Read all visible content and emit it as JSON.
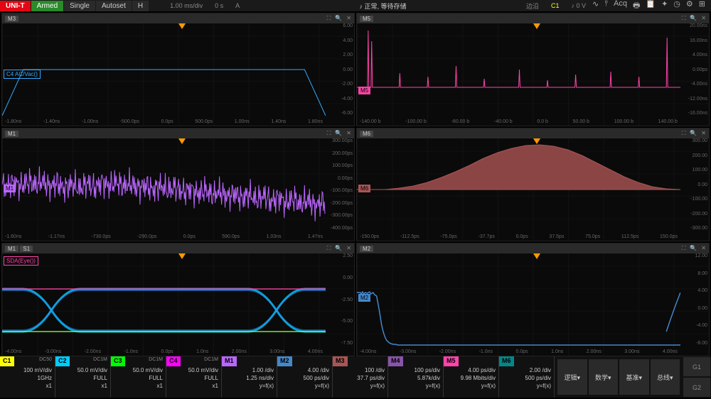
{
  "topbar": {
    "logo": "UNI-T",
    "armed": "Armed",
    "single": "Single",
    "autoset": "Autoset",
    "h": "H",
    "timebase": "1.00 ms/div",
    "delay": "0 s",
    "a": "A",
    "center": "正常, 等待存储",
    "trigger_coupling": "边沿",
    "trigger_source": "C1",
    "trigger_level": "0 V"
  },
  "panels": {
    "m3": {
      "tag": "M3",
      "label": "C4 AC/Vac()",
      "label_color": "#3af"
    },
    "m5": {
      "tag": "M5",
      "label": "M5",
      "label_color": "#f4a"
    },
    "m1": {
      "tag": "M1",
      "label": "M1",
      "label_color": "#b6f"
    },
    "m6": {
      "tag": "M6",
      "label": "M6",
      "label_color": "#a55"
    },
    "sda": {
      "tag": "M1",
      "label2": "S1",
      "sda_label": "SDA(Eye())",
      "sda_color": "#f4a"
    },
    "m2": {
      "tag": "M2",
      "label": "M2",
      "label_color": "#48c"
    }
  },
  "yaxis_common": [
    "-6.00",
    "-4.00",
    "-2.00",
    "0.00",
    "2.00",
    "4.00",
    "6.00"
  ],
  "yaxis_m5": [
    "-16.00ns",
    "-12.00ns",
    "-8.00ns",
    "-4.00ns",
    "0.00ps",
    "4.00ns",
    "12.00ns",
    "16.00ns",
    "20.00ns"
  ],
  "yaxis_m1": [
    "-400.00ps",
    "-300.00ps",
    "-200.00ps",
    "-100.00ps",
    "0.00ps",
    "100.00ps",
    "200.00ps",
    "300.00ps"
  ],
  "yaxis_m6": [
    "-300.00",
    "-200.00",
    "-100.00",
    "0.00",
    "100.00",
    "200.00",
    "300.00"
  ],
  "yaxis_sda": [
    "-7.50",
    "-5.00",
    "-2.50",
    "0.00",
    "2.50"
  ],
  "yaxis_m2": [
    "-8.00",
    "-4.00",
    "0.00",
    "4.00",
    "8.00",
    "12.00"
  ],
  "xaxis_common": [
    "-1.80ns",
    "-1.40ns",
    "-1.00ns",
    "-500.0ps",
    "0.0ps",
    "500.0ps",
    "1.00ns",
    "1.40ns",
    "1.80ns"
  ],
  "xaxis_m1": [
    "-1.60ns",
    "-1.17ns",
    "-730.0ps",
    "-290.0ps",
    "0.0ps",
    "590.0ps",
    "1.03ns",
    "1.47ns"
  ],
  "xaxis_m5": [
    "-140.00 b",
    "-100.00 b",
    "-80.00 b",
    "-40.00 b",
    "0.0 b",
    "50.00 b",
    "100.00 b",
    "140.00 b"
  ],
  "xaxis_m6": [
    "-150.0ps",
    "-112.5ps",
    "-75.0ps",
    "-37.7ps",
    "0.0ps",
    "37.5ps",
    "75.0ps",
    "112.5ps",
    "150.0ps"
  ],
  "xaxis_sda": [
    "-4.00ns",
    "-3.00ns",
    "-2.00ns",
    "-1.0ns",
    "0.0ps",
    "1.0ns",
    "2.00ns",
    "3.00ns",
    "4.00ns"
  ],
  "channels": [
    {
      "tag": "C1",
      "color": "#ff0",
      "coupling": "DC50",
      "vdiv": "100 mV/div",
      "bw": "1GHz",
      "prb": "x1"
    },
    {
      "tag": "C2",
      "color": "#0cf",
      "coupling": "DC1M",
      "vdiv": "50.0 mV/div",
      "bw": "FULL",
      "prb": "x1"
    },
    {
      "tag": "C3",
      "color": "#0f0",
      "coupling": "DC1M",
      "vdiv": "50.0 mV/div",
      "bw": "FULL",
      "prb": "x1"
    },
    {
      "tag": "C4",
      "color": "#f0f",
      "coupling": "DC1M",
      "vdiv": "50.0 mV/div",
      "bw": "FULL",
      "prb": "x1"
    },
    {
      "tag": "M1",
      "color": "#b6f",
      "coupling": "",
      "vdiv": "1.00 /div",
      "bw": "1.25 ns/div",
      "prb": "y=f(x)"
    },
    {
      "tag": "M2",
      "color": "#48c",
      "coupling": "",
      "vdiv": "4.00 /div",
      "bw": "500 ps/div",
      "prb": "y=f(x)"
    },
    {
      "tag": "M3",
      "color": "#a55",
      "coupling": "",
      "vdiv": "100 /div",
      "bw": "37.7 ps/div",
      "prb": "y=f(x)"
    },
    {
      "tag": "M4",
      "color": "#85a",
      "coupling": "",
      "vdiv": "100 ps/div",
      "bw": "5.87k/div",
      "prb": "y=f(x)"
    },
    {
      "tag": "M5",
      "color": "#f4a",
      "coupling": "",
      "vdiv": "4.00 ps/div",
      "bw": "9.98 Mbits/div",
      "prb": "y=f(x)"
    },
    {
      "tag": "M6",
      "color": "#088",
      "coupling": "",
      "vdiv": "2.00 /div",
      "bw": "500 ps/div",
      "prb": "y=f(x)"
    }
  ],
  "bottom_btns": [
    "逻辑▾",
    "数学▾",
    "基准▾",
    "总线▾"
  ],
  "g_labels": [
    "G1",
    "G2"
  ],
  "colors": {
    "m3_line": "#3af",
    "m5_line": "#f4a",
    "m1_line": "#b6f",
    "m6_fill": "#8b4545",
    "eye_cyan": "#0cf",
    "eye_mag": "#f4a",
    "eye_grn": "#8f4",
    "m2_line": "#48c"
  }
}
